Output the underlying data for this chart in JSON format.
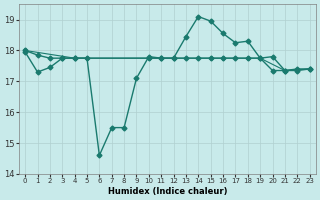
{
  "xlabel": "Humidex (Indice chaleur)",
  "x": [
    0,
    1,
    2,
    3,
    4,
    5,
    6,
    7,
    8,
    9,
    10,
    11,
    12,
    13,
    14,
    15,
    16,
    17,
    18,
    19,
    20,
    21,
    22,
    23
  ],
  "series1": [
    18.0,
    17.85,
    17.75,
    17.75,
    17.75,
    17.75,
    14.6,
    15.5,
    15.5,
    17.1,
    17.8,
    17.75,
    17.75,
    18.45,
    19.1,
    18.95,
    18.55,
    18.25,
    18.3,
    17.75,
    17.8,
    17.35,
    17.35,
    17.4
  ],
  "series2": [
    18.0,
    null,
    null,
    null,
    17.75,
    17.75,
    null,
    null,
    null,
    null,
    17.75,
    17.75,
    17.75,
    null,
    null,
    17.75,
    17.75,
    null,
    17.75,
    17.75,
    null,
    17.35,
    null,
    17.4
  ],
  "series3": [
    17.95,
    17.3,
    17.45,
    17.75,
    17.75,
    null,
    null,
    null,
    null,
    null,
    17.75,
    17.75,
    17.75,
    17.75,
    17.75,
    17.75,
    17.75,
    17.75,
    17.75,
    17.75,
    17.35,
    17.35,
    17.4,
    17.4
  ],
  "ylim": [
    14,
    19.5
  ],
  "yticks": [
    14,
    15,
    16,
    17,
    18,
    19
  ],
  "xlim": [
    -0.5,
    23.5
  ],
  "line_color": "#1a7a6e",
  "bg_color": "#c8eaea",
  "grid_color": "#b0d0d0",
  "minor_grid_color": "#d0e8e8"
}
